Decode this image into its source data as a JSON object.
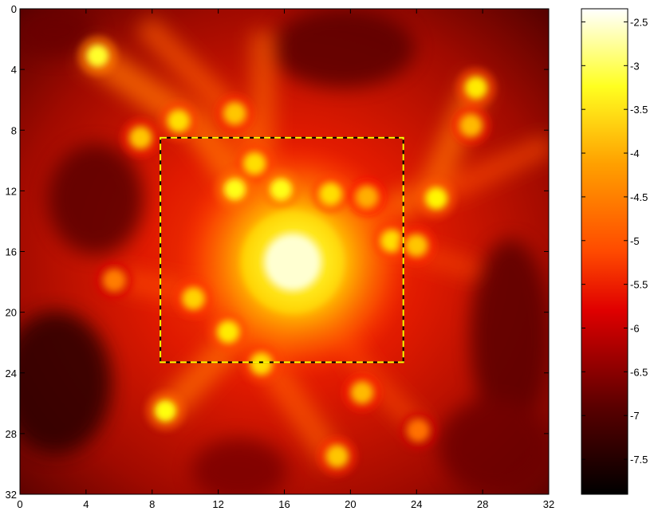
{
  "chart_data": {
    "type": "heatmap",
    "title": "",
    "xlabel": "",
    "ylabel": "",
    "x_ticks": [
      "0",
      "4",
      "8",
      "12",
      "16",
      "20",
      "24",
      "28",
      "32"
    ],
    "y_ticks": [
      "0",
      "4",
      "8",
      "12",
      "16",
      "20",
      "24",
      "28",
      "32"
    ],
    "xlim": [
      0,
      32
    ],
    "ylim": [
      32,
      0
    ],
    "colormap": "hot",
    "colorbar": {
      "range": [
        -7.9,
        -2.35
      ],
      "ticks": [
        "-2.5",
        "-3",
        "-3.5",
        "-4",
        "-4.5",
        "-5",
        "-5.5",
        "-6",
        "-6.5",
        "-7",
        "-7.5"
      ],
      "tick_values": [
        -2.5,
        -3,
        -3.5,
        -4,
        -4.5,
        -5,
        -5.5,
        -6,
        -6.5,
        -7,
        -7.5
      ]
    },
    "highlight_box": {
      "x_range": [
        8.5,
        23.2
      ],
      "y_range": [
        8.5,
        23.3
      ],
      "style": "dashed",
      "colors": [
        "#ffff00",
        "#000000"
      ]
    },
    "halos": [
      {
        "x": 16.5,
        "y": 16.7,
        "value": -2.6
      },
      {
        "x": 4.7,
        "y": 3.1,
        "value": -3.5
      },
      {
        "x": 7.3,
        "y": 8.5,
        "value": -4.2
      },
      {
        "x": 9.6,
        "y": 7.4,
        "value": -4.0
      },
      {
        "x": 13.0,
        "y": 6.9,
        "value": -4.2
      },
      {
        "x": 14.2,
        "y": 10.2,
        "value": -4.0
      },
      {
        "x": 13.0,
        "y": 11.9,
        "value": -3.6
      },
      {
        "x": 15.8,
        "y": 11.9,
        "value": -3.6
      },
      {
        "x": 18.8,
        "y": 12.2,
        "value": -4.0
      },
      {
        "x": 21.0,
        "y": 12.4,
        "value": -4.4
      },
      {
        "x": 25.2,
        "y": 12.5,
        "value": -3.8
      },
      {
        "x": 27.6,
        "y": 5.2,
        "value": -3.9
      },
      {
        "x": 27.3,
        "y": 7.7,
        "value": -4.3
      },
      {
        "x": 22.5,
        "y": 15.3,
        "value": -4.0
      },
      {
        "x": 24.0,
        "y": 15.6,
        "value": -4.2
      },
      {
        "x": 10.5,
        "y": 19.1,
        "value": -4.1
      },
      {
        "x": 12.6,
        "y": 21.3,
        "value": -3.9
      },
      {
        "x": 14.6,
        "y": 23.4,
        "value": -4.0
      },
      {
        "x": 8.8,
        "y": 26.5,
        "value": -3.7
      },
      {
        "x": 20.7,
        "y": 25.3,
        "value": -4.3
      },
      {
        "x": 19.2,
        "y": 29.5,
        "value": -4.2
      },
      {
        "x": 5.7,
        "y": 17.9,
        "value": -4.8
      },
      {
        "x": 24.1,
        "y": 27.8,
        "value": -4.9
      }
    ]
  }
}
